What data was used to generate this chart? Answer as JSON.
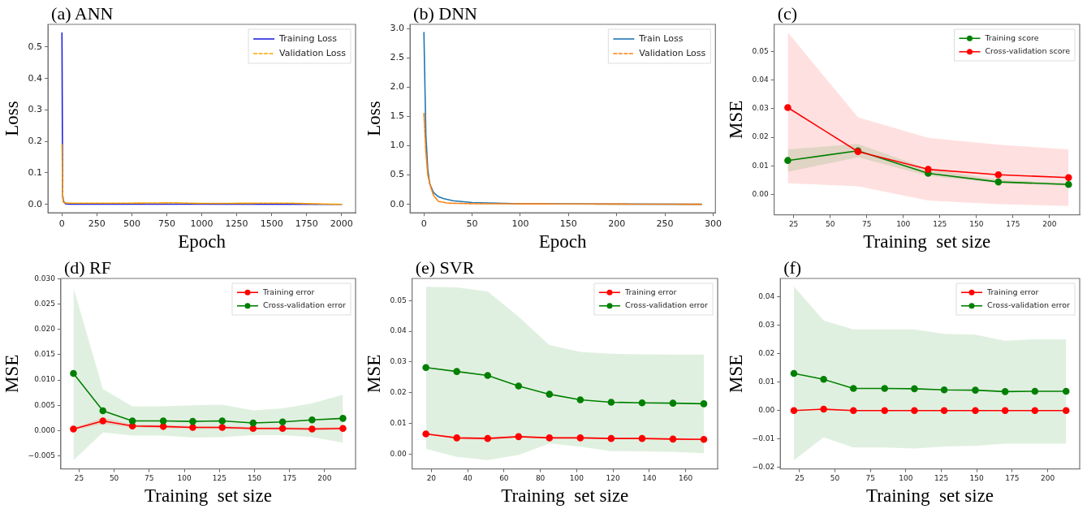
{
  "chart_data": [
    {
      "type": "line",
      "title": "(a) ANN",
      "xlabel": "Epoch",
      "ylabel": "Loss",
      "legend": "top right",
      "marker": "none",
      "line_style": "solid",
      "xlim": [
        -100,
        2100
      ],
      "xticks": [
        0,
        250,
        500,
        750,
        1000,
        1250,
        1500,
        1750,
        2000
      ],
      "ylim": [
        -0.027,
        0.572
      ],
      "yticks": [
        {
          "value": 0,
          "label": "0.0"
        },
        0.1,
        0.2,
        0.3,
        0.4,
        0.5
      ],
      "series": [
        {
          "name": "Training Loss",
          "color": "#2222dd",
          "x": [
            0,
            5,
            10,
            25,
            50,
            2000
          ],
          "values": [
            0.545,
            0.03,
            0.01,
            0.002,
            0.001,
            0.0
          ]
        },
        {
          "name": "Validation Loss",
          "color": "#ffa500",
          "line_style": "dashed",
          "x": [
            0,
            5,
            10,
            50,
            500,
            800,
            1000,
            1600,
            2000
          ],
          "values": [
            0.19,
            0.02,
            0.006,
            0.004,
            0.004,
            0.005,
            0.003,
            0.004,
            0.0
          ]
        }
      ]
    },
    {
      "type": "line",
      "title": "(b) DNN",
      "xlabel": "Epoch",
      "ylabel": "Loss",
      "legend": "top right",
      "marker": "none",
      "line_style": "solid",
      "xlim": [
        -14.4,
        302.4
      ],
      "xticks": [
        0,
        50,
        100,
        150,
        200,
        250,
        300
      ],
      "ylim": [
        -0.146,
        3.07
      ],
      "yticks": [
        {
          "value": 0,
          "label": "0.0"
        },
        0.5,
        {
          "value": 1,
          "label": "1.0"
        },
        1.5,
        {
          "value": 2,
          "label": "2.0"
        },
        2.5,
        {
          "value": 3,
          "label": "3.0"
        }
      ],
      "series": [
        {
          "name": "Train Loss",
          "color": "#1f77b4",
          "x": [
            0,
            2,
            4,
            6,
            10,
            15,
            20,
            30,
            50,
            100,
            288
          ],
          "values": [
            2.93,
            1.2,
            0.6,
            0.35,
            0.2,
            0.13,
            0.1,
            0.06,
            0.03,
            0.01,
            0.0
          ]
        },
        {
          "name": "Validation Loss",
          "color": "#ff7f0e",
          "line_style": "dashed",
          "x": [
            0,
            2,
            4,
            7,
            10,
            15,
            25,
            50,
            288
          ],
          "values": [
            1.55,
            0.9,
            0.5,
            0.3,
            0.15,
            0.05,
            0.02,
            0.01,
            0.0
          ]
        }
      ]
    },
    {
      "type": "line",
      "title": "(c)",
      "xlabel": "Training  set size",
      "ylabel": "MSE",
      "legend": "top right",
      "marker": "circle",
      "line_style": "solid",
      "xlim": [
        11.7,
        220.6
      ],
      "xticks": [
        25,
        50,
        75,
        100,
        125,
        150,
        175,
        200
      ],
      "ylim": [
        -0.0071,
        0.0595
      ],
      "yticks": [
        {
          "value": 0,
          "label": "0.00"
        },
        0.01,
        0.02,
        0.03,
        0.04,
        0.05
      ],
      "x": [
        21,
        69,
        117,
        165,
        213
      ],
      "series": [
        {
          "name": "Training score",
          "color": "#008000",
          "values": [
            0.0119,
            0.0153,
            0.0074,
            0.0044,
            0.0035
          ],
          "lower": [
            0.0079,
            0.013,
            0.0065,
            0.004,
            0.0031
          ],
          "upper": [
            0.0158,
            0.0177,
            0.009,
            0.0052,
            0.004
          ]
        },
        {
          "name": "Cross-validation score",
          "color": "#ff0000",
          "values": [
            0.0304,
            0.015,
            0.0088,
            0.0069,
            0.0059
          ],
          "lower": [
            0.0039,
            0.0029,
            -0.0021,
            -0.0034,
            -0.004
          ],
          "upper": [
            0.0567,
            0.027,
            0.0198,
            0.0174,
            0.0158
          ]
        }
      ]
    },
    {
      "type": "line",
      "title": "(d) RF",
      "xlabel": "Training  set size",
      "ylabel": "MSE",
      "legend": "top right",
      "marker": "circle",
      "line_style": "solid",
      "xlim": [
        12,
        222
      ],
      "xticks": [
        25,
        50,
        75,
        100,
        125,
        150,
        175,
        200
      ],
      "ylim": [
        -0.0076,
        0.0301
      ],
      "yticks": [
        {
          "value": -0.005,
          "label": "−0.005"
        },
        {
          "value": 0,
          "label": "0.000"
        },
        0.005,
        {
          "value": 0.01,
          "label": "0.010"
        },
        0.015,
        {
          "value": 0.02,
          "label": "0.020"
        },
        0.025,
        {
          "value": 0.03,
          "label": "0.030"
        }
      ],
      "x": [
        21,
        42,
        63,
        85,
        106,
        127,
        149,
        170,
        191,
        213
      ],
      "series": [
        {
          "name": "Training error",
          "color": "#ff0000",
          "values": [
            0.0003,
            0.0019,
            0.0009,
            0.0008,
            0.0006,
            0.0006,
            0.0004,
            0.0004,
            0.0003,
            0.0004
          ],
          "lower": [
            0.0001,
            0.0013,
            0.0006,
            0.0005,
            0.0003,
            0.0003,
            0.0001,
            0.0001,
            0.0,
            0.0001
          ],
          "upper": [
            0.0005,
            0.0025,
            0.0012,
            0.0011,
            0.0009,
            0.0009,
            0.0007,
            0.0007,
            0.0006,
            0.0007
          ]
        },
        {
          "name": "Cross-validation error",
          "color": "#008000",
          "values": [
            0.0113,
            0.0039,
            0.0019,
            0.0019,
            0.0018,
            0.0019,
            0.0015,
            0.0017,
            0.0021,
            0.0024
          ],
          "lower": [
            -0.0059,
            -0.0004,
            -0.001,
            -0.001,
            -0.0014,
            -0.0013,
            -0.0009,
            -0.0009,
            -0.0013,
            -0.0024
          ],
          "upper": [
            0.0283,
            0.0082,
            0.0048,
            0.0048,
            0.005,
            0.0051,
            0.004,
            0.0044,
            0.0054,
            0.0071
          ]
        }
      ]
    },
    {
      "type": "line",
      "title": "(e) SVR",
      "xlabel": "Training  set size",
      "ylabel": "MSE",
      "legend": "top right",
      "marker": "circle",
      "line_style": "solid",
      "xlim": [
        9.4,
        177.6
      ],
      "xticks": [
        20,
        40,
        60,
        80,
        100,
        120,
        140,
        160
      ],
      "ylim": [
        -0.0048,
        0.0572
      ],
      "yticks": [
        {
          "value": 0,
          "label": "0.00"
        },
        0.01,
        0.02,
        0.03,
        0.04,
        0.05
      ],
      "x": [
        17,
        34,
        51,
        68,
        85,
        102,
        119,
        136,
        153,
        170
      ],
      "series": [
        {
          "name": "Training error",
          "color": "#ff0000",
          "values": [
            0.0066,
            0.0053,
            0.0051,
            0.0057,
            0.0053,
            0.0053,
            0.0051,
            0.0051,
            0.0049,
            0.0048
          ],
          "lower": [
            0.0063,
            0.0049,
            0.0046,
            0.0054,
            0.005,
            0.005,
            0.0048,
            0.0048,
            0.0046,
            0.0045
          ],
          "upper": [
            0.0069,
            0.0056,
            0.0056,
            0.006,
            0.0056,
            0.0056,
            0.0054,
            0.0054,
            0.0052,
            0.0051
          ]
        },
        {
          "name": "Cross-validation error",
          "color": "#008000",
          "values": [
            0.0282,
            0.0269,
            0.0256,
            0.0222,
            0.0195,
            0.0177,
            0.0169,
            0.0167,
            0.0166,
            0.0164
          ],
          "lower": [
            0.0017,
            -0.0009,
            -0.0019,
            -0.0003,
            0.0035,
            0.0024,
            0.001,
            0.0009,
            0.0007,
            0.0003
          ],
          "upper": [
            0.0545,
            0.0543,
            0.053,
            0.0448,
            0.0355,
            0.0333,
            0.0327,
            0.0325,
            0.0324,
            0.0324
          ]
        }
      ]
    },
    {
      "type": "line",
      "title": "(f)",
      "xlabel": "Training  set size",
      "ylabel": "MSE",
      "legend": "top right",
      "marker": "circle",
      "line_style": "solid",
      "xlim": [
        11.4,
        222.6
      ],
      "xticks": [
        25,
        50,
        75,
        100,
        125,
        150,
        175,
        200
      ],
      "ylim": [
        -0.0205,
        0.0465
      ],
      "yticks": [
        {
          "value": -0.02,
          "label": "−0.02"
        },
        {
          "value": -0.01,
          "label": "−0.01"
        },
        {
          "value": 0,
          "label": "0.00"
        },
        0.01,
        0.02,
        0.03,
        0.04
      ],
      "x": [
        21,
        42,
        63,
        85,
        106,
        127,
        149,
        170,
        191,
        213
      ],
      "series": [
        {
          "name": "Training error",
          "color": "#ff0000",
          "values": [
            0.0,
            0.0005,
            0.0,
            0.0,
            0.0,
            0.0,
            0.0,
            0.0,
            0.0,
            0.0
          ]
        },
        {
          "name": "Cross-validation error",
          "color": "#008000",
          "values": [
            0.0131,
            0.011,
            0.0078,
            0.0078,
            0.0077,
            0.0073,
            0.0072,
            0.0067,
            0.0068,
            0.0068
          ],
          "lower": [
            -0.0175,
            -0.0094,
            -0.013,
            -0.013,
            -0.0133,
            -0.0126,
            -0.0124,
            -0.0116,
            -0.0116,
            -0.0116
          ],
          "upper": [
            0.0437,
            0.0317,
            0.0286,
            0.0286,
            0.0286,
            0.027,
            0.0267,
            0.0246,
            0.0251,
            0.0251
          ]
        }
      ]
    }
  ]
}
